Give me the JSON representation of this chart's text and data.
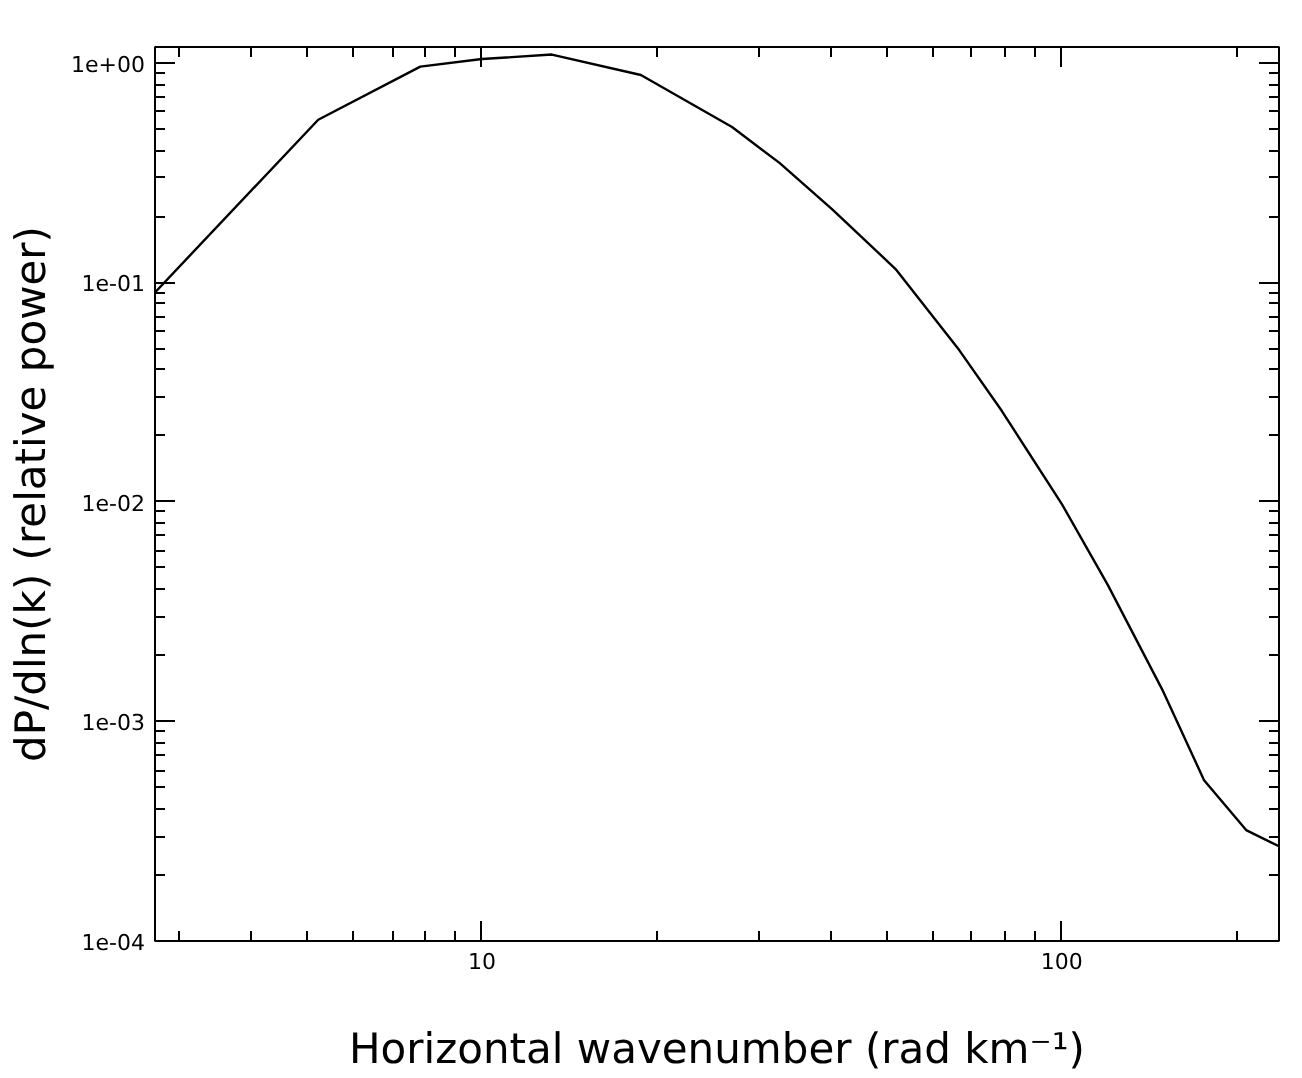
{
  "chart_data": {
    "type": "line",
    "xlabel": "Horizontal wavenumber (rad km⁻¹)",
    "ylabel": "dP/dln(k) (relative power)",
    "log": "xy",
    "grid": false,
    "marker": "none",
    "line_style": "solid",
    "xlim": [
      2.73,
      237
    ],
    "ylim": [
      0.0001,
      1.18
    ],
    "xticks": [
      10,
      100
    ],
    "yticks": [
      {
        "value": 0.0001,
        "label": "1e-04"
      },
      {
        "value": 0.001,
        "label": "1e-03"
      },
      {
        "value": 0.01,
        "label": "1e-02"
      },
      {
        "value": 0.1,
        "label": "1e-01"
      },
      {
        "value": 1,
        "label": "1e+00"
      }
    ],
    "x": [
      2.73,
      5.22,
      7.83,
      10,
      13.2,
      18.8,
      27.0,
      32.6,
      40.2,
      51.7,
      66.6,
      78.8,
      100,
      120,
      149,
      176,
      208,
      237
    ],
    "series": [
      {
        "color": "#000000",
        "values": [
          0.09,
          0.55,
          0.96,
          1.04,
          1.09,
          0.88,
          0.51,
          0.35,
          0.215,
          0.115,
          0.049,
          0.026,
          0.0098,
          0.0042,
          0.0014,
          0.00054,
          0.00032,
          0.00027
        ]
      }
    ]
  }
}
